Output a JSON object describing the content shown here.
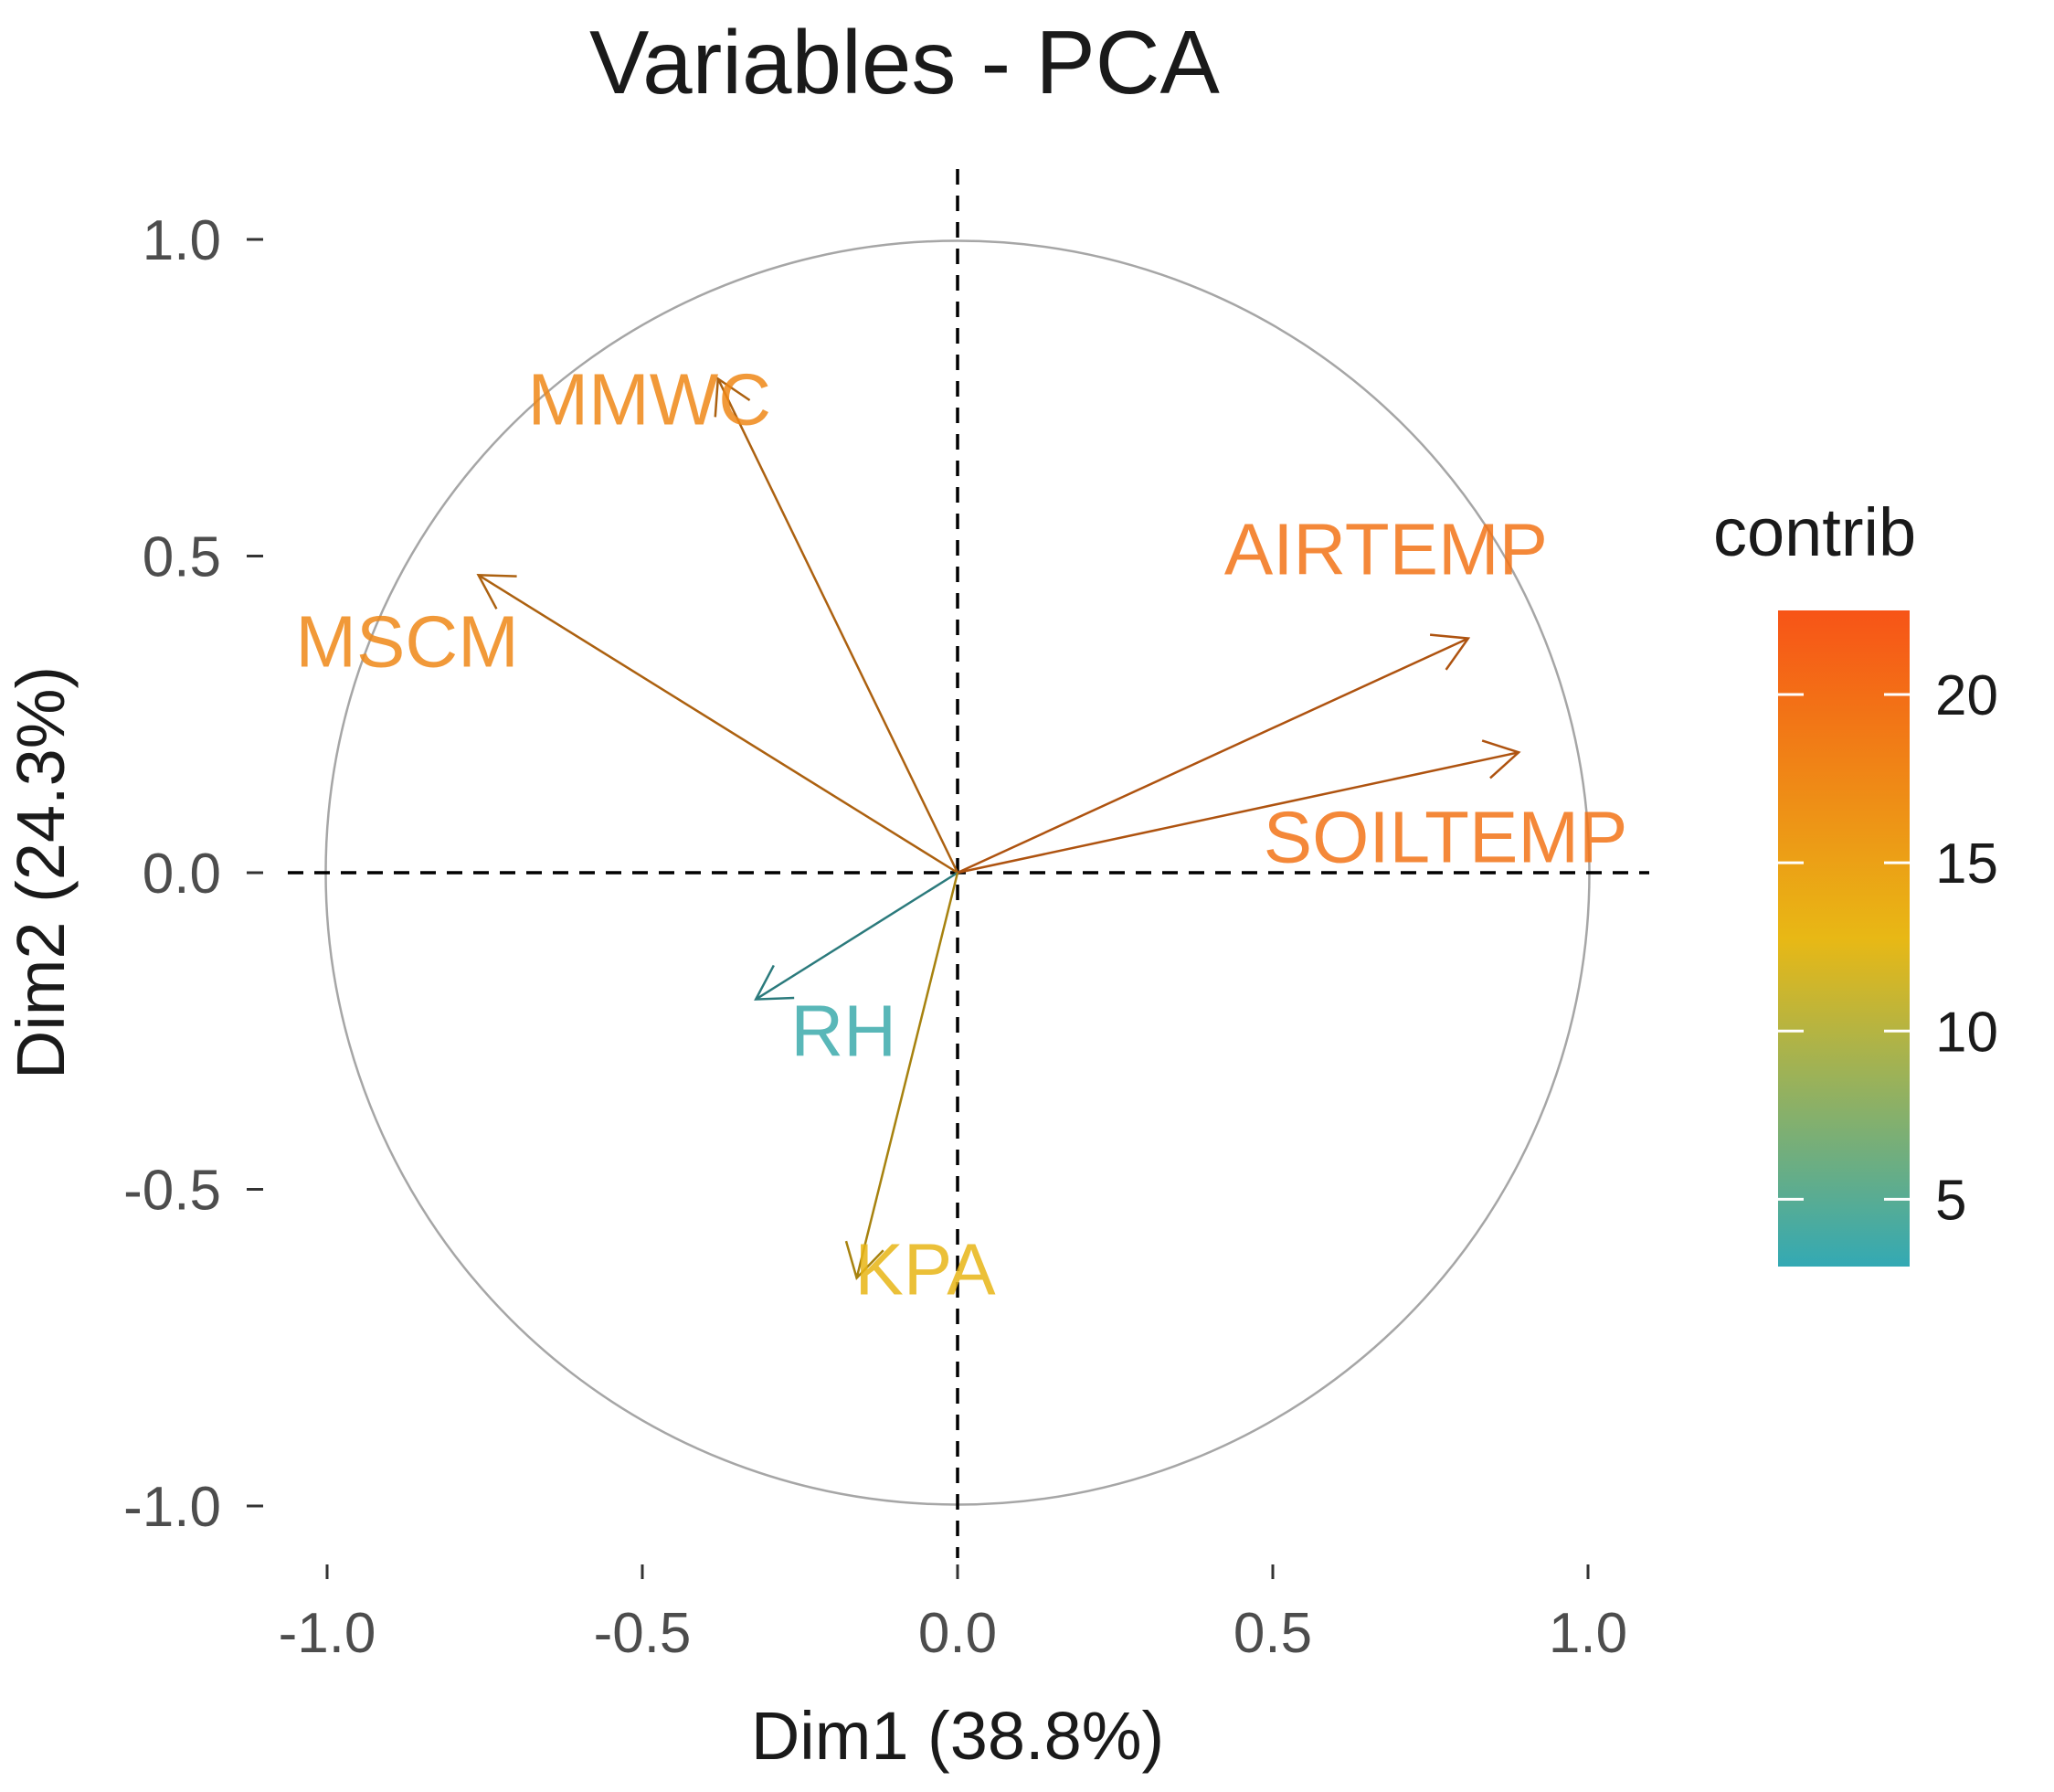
{
  "chart_data": {
    "type": "scatter",
    "subtype": "pca-variable-correlation-circle",
    "title": "Variables - PCA",
    "xlabel": "Dim1 (38.8%)",
    "ylabel": "Dim2 (24.3%)",
    "xlim": [
      -1.1,
      1.1
    ],
    "ylim": [
      -1.1,
      1.1
    ],
    "x_ticks": [
      -1.0,
      -0.5,
      0.0,
      0.5,
      1.0
    ],
    "y_ticks": [
      -1.0,
      -0.5,
      0.0,
      0.5,
      1.0
    ],
    "x_tick_labels": [
      "-1.0",
      "-0.5",
      "0.0",
      "0.5",
      "1.0"
    ],
    "y_tick_labels": [
      "-1.0",
      "-0.5",
      "0.0",
      "0.5",
      "1.0"
    ],
    "grid": false,
    "reference_lines": {
      "x": 0,
      "y": 0,
      "style": "dashed"
    },
    "unit_circle": true,
    "variables": [
      {
        "name": "MMWC",
        "x": -0.38,
        "y": 0.78,
        "contrib": 17.5
      },
      {
        "name": "MSCM",
        "x": -0.76,
        "y": 0.47,
        "contrib": 17.5
      },
      {
        "name": "AIRTEMP",
        "x": 0.81,
        "y": 0.37,
        "contrib": 19.5
      },
      {
        "name": "SOILTEMP",
        "x": 0.89,
        "y": 0.19,
        "contrib": 19.5
      },
      {
        "name": "RH",
        "x": -0.32,
        "y": -0.2,
        "contrib": 3.5
      },
      {
        "name": "KPA",
        "x": -0.16,
        "y": -0.64,
        "contrib": 13
      }
    ],
    "legend": {
      "title": "contrib",
      "placement": "right",
      "range": [
        3,
        22.5
      ],
      "ticks": [
        5,
        10,
        15,
        20
      ],
      "tick_labels": [
        "5",
        "10",
        "15",
        "20"
      ],
      "gradient": [
        {
          "value": 3,
          "color": "#33a9b4"
        },
        {
          "value": 12.75,
          "color": "#e8b815"
        },
        {
          "value": 22.5,
          "color": "#f75417"
        }
      ]
    }
  }
}
